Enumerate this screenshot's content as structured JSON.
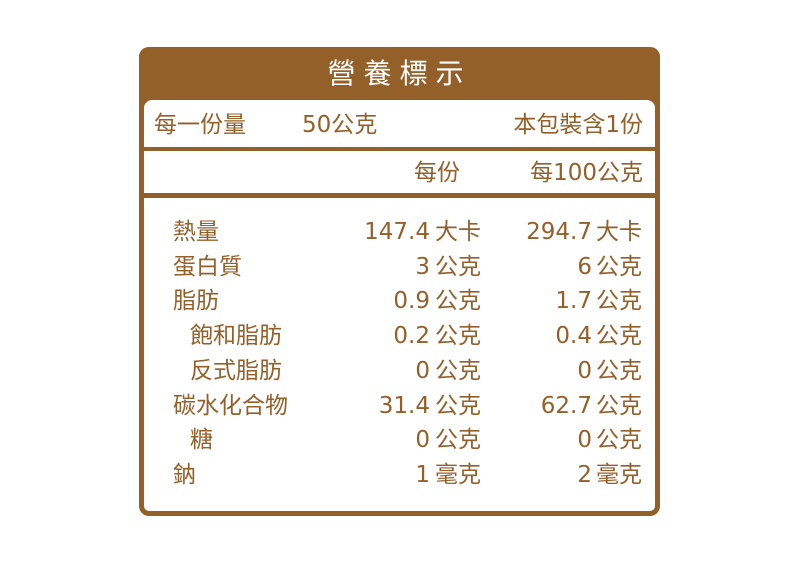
{
  "title": "營養標示",
  "serving_size_label": "每一份量",
  "serving_size_value": "50公克",
  "servings_per_package": "本包裝含1份",
  "columns": {
    "per_serving": "每份",
    "per_100g": "每100公克"
  },
  "nutrients": [
    {
      "name": "熱量",
      "indent": false,
      "per_serving": "147.4",
      "per_serving_unit": "大卡",
      "per_100g": "294.7",
      "per_100g_unit": "大卡"
    },
    {
      "name": "蛋白質",
      "indent": false,
      "per_serving": "3",
      "per_serving_unit": "公克",
      "per_100g": "6",
      "per_100g_unit": "公克"
    },
    {
      "name": "脂肪",
      "indent": false,
      "per_serving": "0.9",
      "per_serving_unit": "公克",
      "per_100g": "1.7",
      "per_100g_unit": "公克"
    },
    {
      "name": "飽和脂肪",
      "indent": true,
      "per_serving": "0.2",
      "per_serving_unit": "公克",
      "per_100g": "0.4",
      "per_100g_unit": "公克"
    },
    {
      "name": "反式脂肪",
      "indent": true,
      "per_serving": "0",
      "per_serving_unit": "公克",
      "per_100g": "0",
      "per_100g_unit": "公克"
    },
    {
      "name": "碳水化合物",
      "indent": false,
      "per_serving": "31.4",
      "per_serving_unit": "公克",
      "per_100g": "62.7",
      "per_100g_unit": "公克"
    },
    {
      "name": "糖",
      "indent": true,
      "per_serving": "0",
      "per_serving_unit": "公克",
      "per_100g": "0",
      "per_100g_unit": "公克"
    },
    {
      "name": "鈉",
      "indent": false,
      "per_serving": "1",
      "per_serving_unit": "毫克",
      "per_100g": "2",
      "per_100g_unit": "毫克"
    }
  ],
  "colors": {
    "brand": "#93602a",
    "background": "#ffffff"
  }
}
